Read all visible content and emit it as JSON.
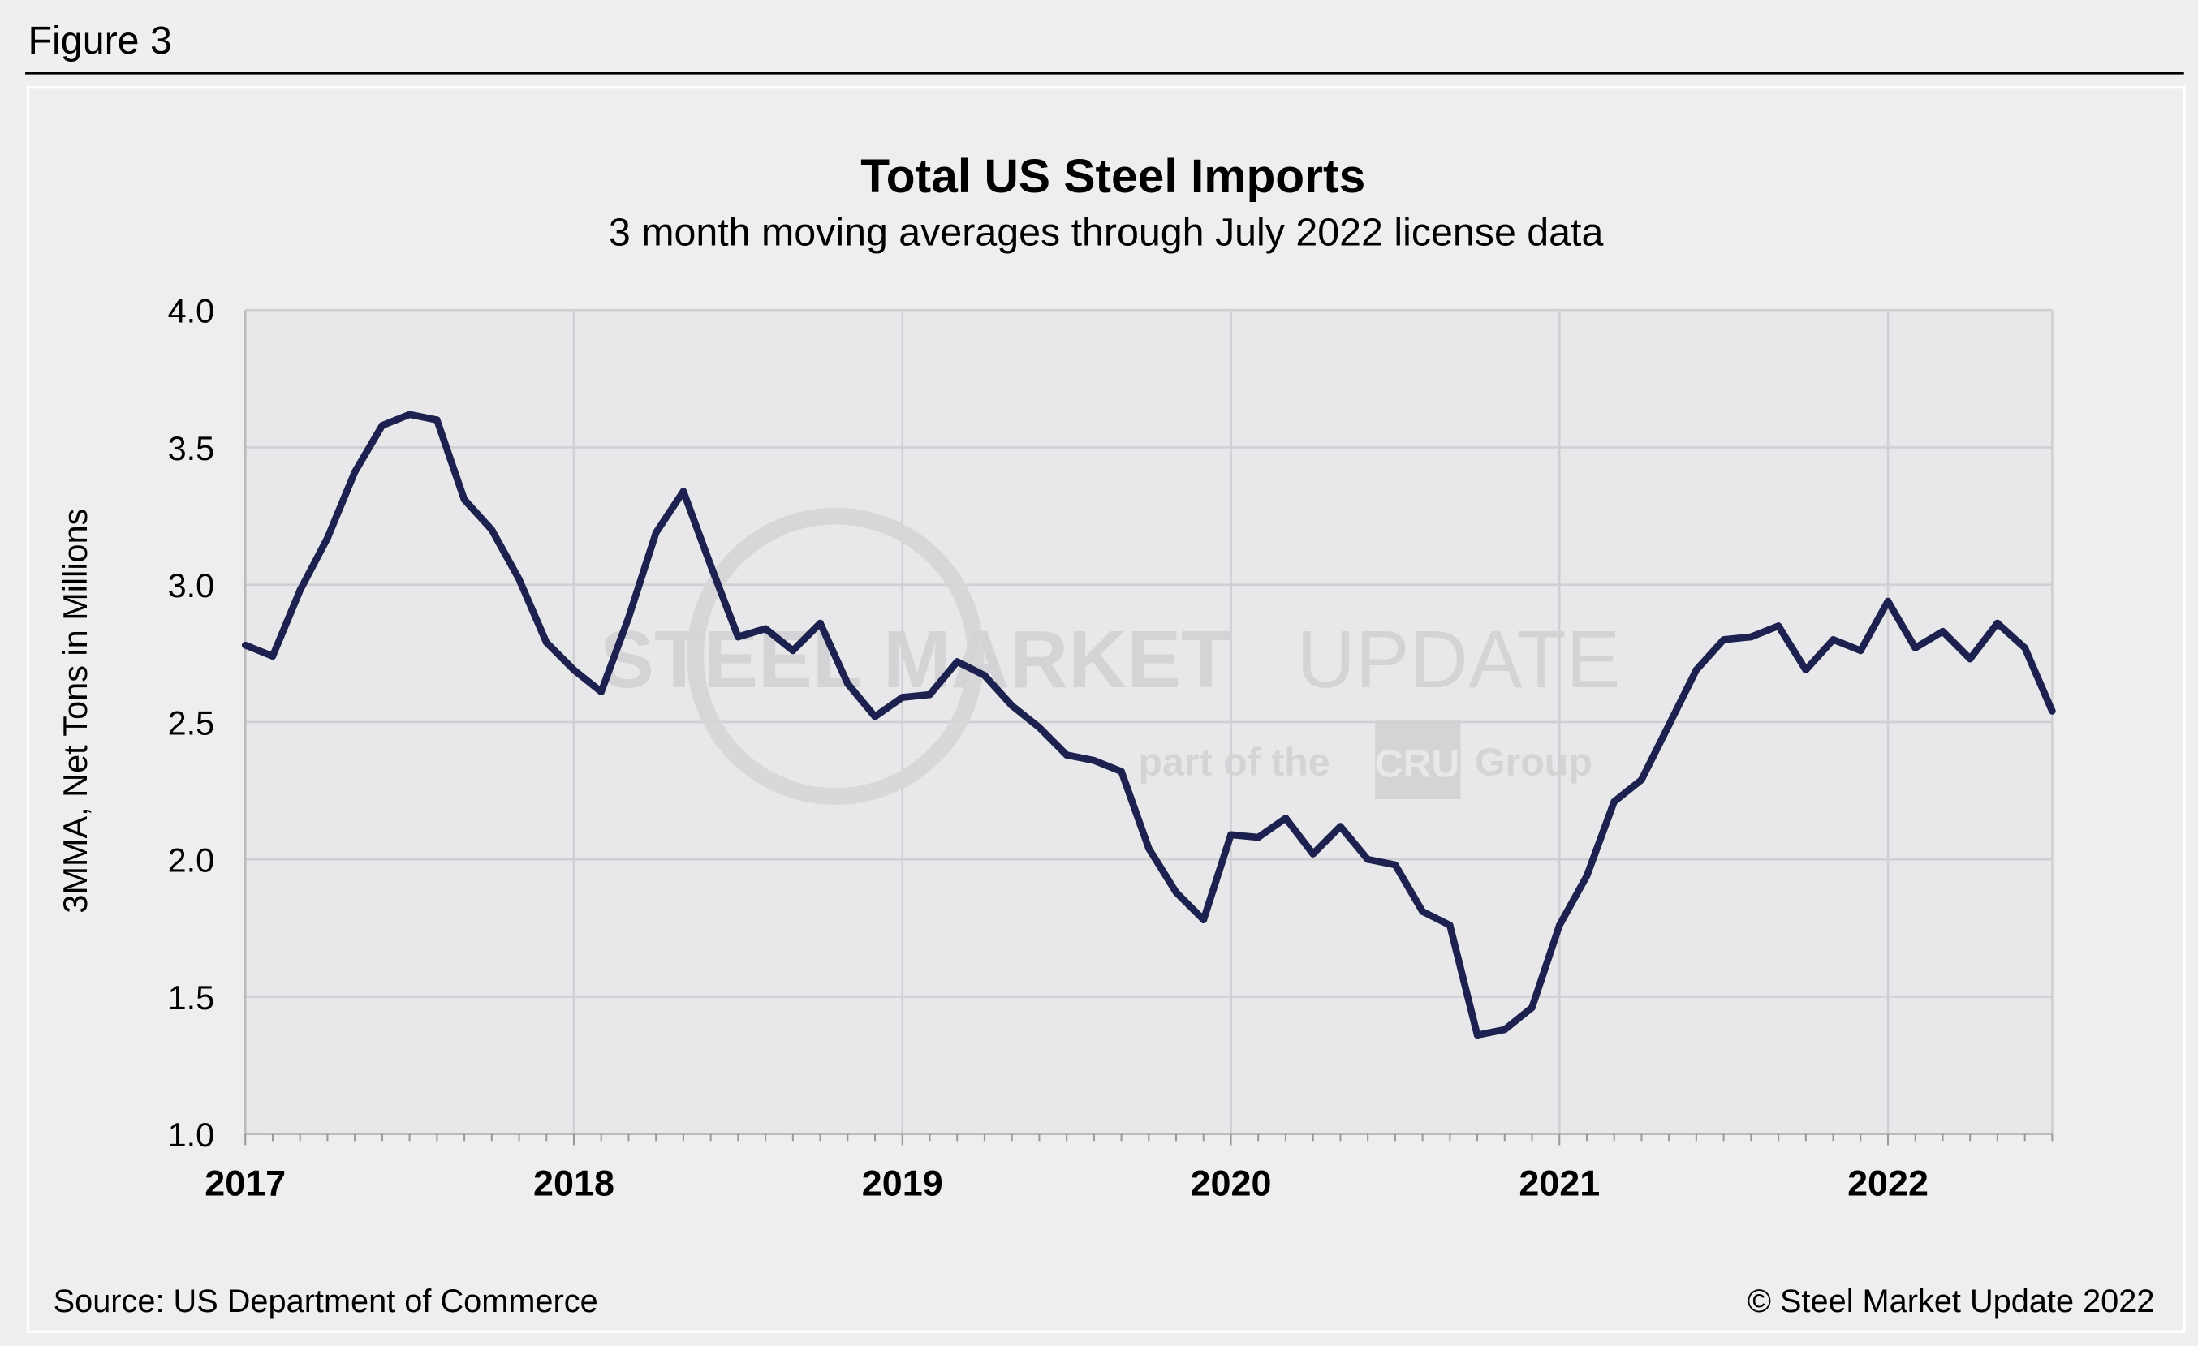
{
  "figure_label": "Figure 3",
  "source": "Source: US Department of Commerce",
  "copyright": "© Steel Market Update 2022",
  "watermark": {
    "line1_bold": "STEEL MARKET",
    "line1_light": "UPDATE",
    "line2_pre": "part of the",
    "line2_logo": "CRU",
    "line2_post": "Group"
  },
  "colors": {
    "line": "#1c2150",
    "plot_bg": "#e8e8ea",
    "page_bg": "#efefef",
    "grid": "#d0d0d4"
  },
  "chart_data": {
    "type": "line",
    "title": "Total US Steel Imports",
    "subtitle": "3 month moving averages through July 2022 license data",
    "xlabel": "",
    "ylabel": "3MMA, Net Tons in Millions",
    "ylim": [
      1.0,
      4.0
    ],
    "yticks": [
      "1.0",
      "1.5",
      "2.0",
      "2.5",
      "3.0",
      "3.5",
      "4.0"
    ],
    "xticks": [
      "2017",
      "2018",
      "2019",
      "2020",
      "2021",
      "2022"
    ],
    "xlim": [
      "2017-01",
      "2022-07"
    ],
    "grid": true,
    "legend": "none",
    "x": [
      "2017-01",
      "2017-02",
      "2017-03",
      "2017-04",
      "2017-05",
      "2017-06",
      "2017-07",
      "2017-08",
      "2017-09",
      "2017-10",
      "2017-11",
      "2017-12",
      "2018-01",
      "2018-02",
      "2018-03",
      "2018-04",
      "2018-05",
      "2018-06",
      "2018-07",
      "2018-08",
      "2018-09",
      "2018-10",
      "2018-11",
      "2018-12",
      "2019-01",
      "2019-02",
      "2019-03",
      "2019-04",
      "2019-05",
      "2019-06",
      "2019-07",
      "2019-08",
      "2019-09",
      "2019-10",
      "2019-11",
      "2019-12",
      "2020-01",
      "2020-02",
      "2020-03",
      "2020-04",
      "2020-05",
      "2020-06",
      "2020-07",
      "2020-08",
      "2020-09",
      "2020-10",
      "2020-11",
      "2020-12",
      "2021-01",
      "2021-02",
      "2021-03",
      "2021-04",
      "2021-05",
      "2021-06",
      "2021-07",
      "2021-08",
      "2021-09",
      "2021-10",
      "2021-11",
      "2021-12",
      "2022-01",
      "2022-02",
      "2022-03",
      "2022-04",
      "2022-05",
      "2022-06",
      "2022-07"
    ],
    "values": [
      2.78,
      2.74,
      2.98,
      3.17,
      3.41,
      3.58,
      3.62,
      3.6,
      3.31,
      3.2,
      3.02,
      2.79,
      2.69,
      2.61,
      2.88,
      3.19,
      3.34,
      3.07,
      2.81,
      2.84,
      2.76,
      2.86,
      2.64,
      2.52,
      2.59,
      2.6,
      2.72,
      2.67,
      2.56,
      2.48,
      2.38,
      2.36,
      2.32,
      2.04,
      1.88,
      1.78,
      2.09,
      2.08,
      2.15,
      2.02,
      2.12,
      2.0,
      1.98,
      1.81,
      1.76,
      1.36,
      1.38,
      1.46,
      1.76,
      1.94,
      2.21,
      2.29,
      2.49,
      2.69,
      2.8,
      2.81,
      2.85,
      2.69,
      2.8,
      2.76,
      2.94,
      2.77,
      2.83,
      2.73,
      2.86,
      2.77,
      2.54
    ]
  }
}
